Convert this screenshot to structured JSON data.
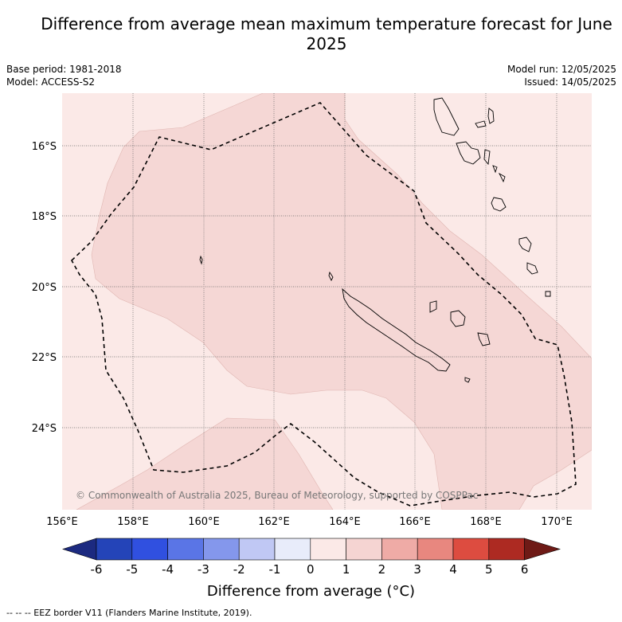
{
  "title": "Difference from average mean maximum temperature forecast for June 2025",
  "base_period": "Base period: 1981-2018",
  "model": "Model: ACCESS-S2",
  "model_run": "Model run: 12/05/2025",
  "issued": "Issued: 14/05/2025",
  "copyright": "© Commonwealth of Australia 2025, Bureau of Meteorology, supported by COSPPac",
  "footnote": "-- -- -- EEZ border V11 (Flanders Marine Institute, 2019).",
  "map": {
    "lon_labels": [
      "156°E",
      "158°E",
      "160°E",
      "162°E",
      "164°E",
      "166°E",
      "168°E",
      "170°E"
    ],
    "lat_labels": [
      "16°S",
      "18°S",
      "20°S",
      "22°S",
      "24°S"
    ]
  },
  "colorbar": {
    "title": "Difference from average (°C)",
    "ticks": [
      "-6",
      "-5",
      "-4",
      "-3",
      "-2",
      "-1",
      "0",
      "1",
      "2",
      "3",
      "4",
      "5",
      "6"
    ],
    "colors": [
      "#1c2a80",
      "#2444b8",
      "#3050e0",
      "#5a75e6",
      "#8497ec",
      "#c0c8f4",
      "#e8ecfa",
      "#fbe9e7",
      "#f5d4d2",
      "#efaba6",
      "#e8877f",
      "#dd4c40",
      "#ad2a22",
      "#6e1a16"
    ]
  },
  "colors": {
    "band_0_1": "#fbe9e7",
    "band_1_2": "#f5d7d5"
  }
}
